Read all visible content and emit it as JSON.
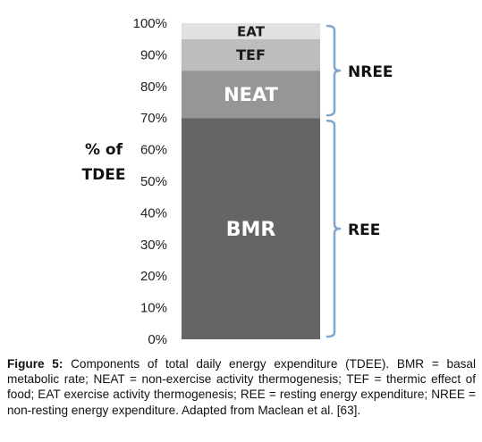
{
  "chart_data": {
    "type": "bar",
    "subtype": "stacked-single",
    "ylabel": [
      "% of",
      "TDEE"
    ],
    "ylim": [
      0,
      100
    ],
    "yticks": [
      0,
      10,
      20,
      30,
      40,
      50,
      60,
      70,
      80,
      90,
      100
    ],
    "ytick_labels": [
      "0%",
      "10%",
      "20%",
      "30%",
      "40%",
      "50%",
      "60%",
      "70%",
      "80%",
      "90%",
      "100%"
    ],
    "segments": [
      {
        "name": "BMR",
        "start": 0,
        "end": 70,
        "color": "#656565"
      },
      {
        "name": "NEAT",
        "start": 70,
        "end": 85,
        "color": "#969696"
      },
      {
        "name": "TEF",
        "start": 85,
        "end": 95,
        "color": "#bdbdbd"
      },
      {
        "name": "EAT",
        "start": 95,
        "end": 100,
        "color": "#e1e1e1"
      }
    ],
    "groups": [
      {
        "label": "NREE",
        "start": 70,
        "end": 100
      },
      {
        "label": "REE",
        "start": 0,
        "end": 70
      }
    ],
    "grid": false
  },
  "caption": {
    "head": "Figure 5:",
    "text": " Components of total daily energy expenditure (TDEE). BMR = basal metabolic rate; NEAT = non-exercise activity thermogenesis; TEF = thermic effect of food; EAT exercise activity thermogenesis; REE = resting energy expenditure; NREE = non-resting energy expenditure. Adapted from Maclean et al. [63]."
  },
  "colors": {
    "bracket": "#7fa6cf",
    "text": "#111111"
  }
}
